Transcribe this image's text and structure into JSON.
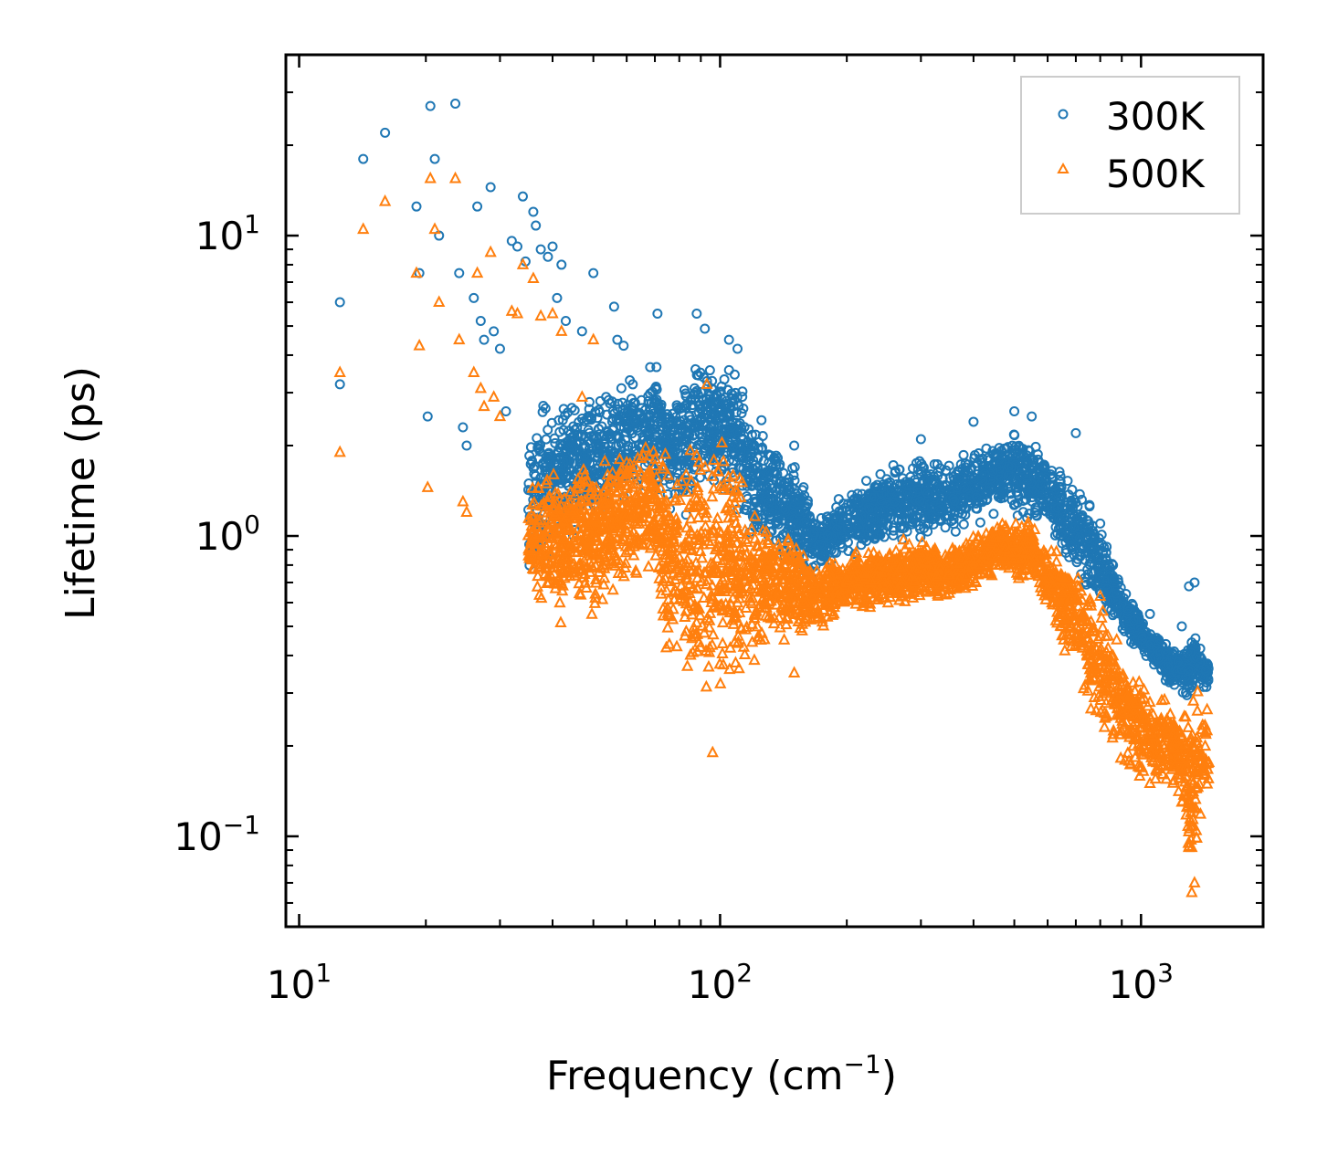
{
  "chart_data": {
    "type": "scatter",
    "xscale": "log",
    "yscale": "log",
    "xlim": [
      9.3,
      1950
    ],
    "ylim": [
      0.05,
      40
    ],
    "xlabel": "Frequency (cm",
    "xlabel_sup": "−1",
    "xlabel_end": ")",
    "ylabel": "Lifetime (ps)",
    "xticks": [
      {
        "value": 10,
        "base": "10",
        "exp": "1"
      },
      {
        "value": 100,
        "base": "10",
        "exp": "2"
      },
      {
        "value": 1000,
        "base": "10",
        "exp": "3"
      }
    ],
    "yticks": [
      {
        "value": 0.1,
        "base": "10",
        "exp": "−1"
      },
      {
        "value": 1,
        "base": "10",
        "exp": "0"
      },
      {
        "value": 10,
        "base": "10",
        "exp": "1"
      }
    ],
    "legend_position": "top-right",
    "series": [
      {
        "name": "300K",
        "marker": "circle",
        "color": "#1f77b4",
        "points": [
          [
            12.5,
            6.0
          ],
          [
            12.5,
            3.2
          ],
          [
            14.2,
            18.0
          ],
          [
            16,
            22.0
          ],
          [
            19,
            12.5
          ],
          [
            19.3,
            7.5
          ],
          [
            20.2,
            2.5
          ],
          [
            20.5,
            27.0
          ],
          [
            21,
            18.0
          ],
          [
            21.5,
            10.0
          ],
          [
            23.5,
            27.5
          ],
          [
            24,
            7.5
          ],
          [
            24.5,
            2.3
          ],
          [
            25,
            2.0
          ],
          [
            26,
            6.2
          ],
          [
            26.5,
            12.5
          ],
          [
            27,
            5.2
          ],
          [
            27.5,
            4.5
          ],
          [
            28.5,
            14.5
          ],
          [
            29,
            4.8
          ],
          [
            30,
            4.2
          ],
          [
            31,
            2.6
          ],
          [
            32,
            9.6
          ],
          [
            33,
            9.2
          ],
          [
            34,
            13.5
          ],
          [
            34.5,
            8.2
          ],
          [
            36,
            12.0
          ],
          [
            36.5,
            10.8
          ],
          [
            37.5,
            9.0
          ],
          [
            39,
            8.5
          ],
          [
            40,
            9.2
          ],
          [
            41,
            6.2
          ],
          [
            42,
            8.0
          ],
          [
            43,
            5.2
          ],
          [
            47,
            4.8
          ],
          [
            50,
            7.5
          ],
          [
            56,
            5.8
          ],
          [
            57,
            4.5
          ],
          [
            59,
            4.3
          ],
          [
            71,
            5.5
          ],
          [
            88,
            5.5
          ],
          [
            92,
            4.9
          ],
          [
            105,
            4.5
          ],
          [
            110,
            4.2
          ],
          [
            150,
            2.0
          ],
          [
            300,
            2.1
          ],
          [
            400,
            2.4
          ],
          [
            500,
            2.6
          ],
          [
            550,
            2.5
          ],
          [
            700,
            2.2
          ],
          [
            800,
            1.1
          ],
          [
            1050,
            0.55
          ],
          [
            1250,
            0.5
          ],
          [
            1300,
            0.68
          ],
          [
            1340,
            0.7
          ]
        ],
        "bands": [
          [
            35,
            0.7,
            2.6
          ],
          [
            40,
            0.8,
            3.0
          ],
          [
            45,
            0.9,
            3.2
          ],
          [
            50,
            1.0,
            3.4
          ],
          [
            55,
            1.1,
            3.6
          ],
          [
            60,
            1.2,
            3.8
          ],
          [
            65,
            1.3,
            3.9
          ],
          [
            70,
            1.4,
            3.9
          ],
          [
            75,
            1.1,
            3.8
          ],
          [
            80,
            1.0,
            3.8
          ],
          [
            85,
            1.1,
            4.2
          ],
          [
            90,
            1.3,
            5.0
          ],
          [
            95,
            1.2,
            4.8
          ],
          [
            100,
            1.1,
            4.2
          ],
          [
            105,
            1.2,
            4.2
          ],
          [
            110,
            1.1,
            3.6
          ],
          [
            115,
            1.0,
            3.2
          ],
          [
            120,
            0.9,
            2.9
          ],
          [
            130,
            0.9,
            2.4
          ],
          [
            140,
            0.8,
            2.1
          ],
          [
            150,
            0.75,
            1.9
          ],
          [
            160,
            0.75,
            1.6
          ],
          [
            170,
            0.7,
            1.2
          ],
          [
            180,
            0.75,
            1.3
          ],
          [
            200,
            0.8,
            1.5
          ],
          [
            230,
            0.85,
            1.7
          ],
          [
            260,
            0.9,
            1.9
          ],
          [
            300,
            0.9,
            2.0
          ],
          [
            330,
            0.95,
            1.8
          ],
          [
            360,
            1.0,
            1.8
          ],
          [
            400,
            1.05,
            2.1
          ],
          [
            450,
            1.1,
            2.3
          ],
          [
            500,
            1.1,
            2.4
          ],
          [
            550,
            1.05,
            2.3
          ],
          [
            600,
            0.95,
            2.0
          ],
          [
            650,
            0.8,
            1.7
          ],
          [
            700,
            0.7,
            1.6
          ],
          [
            750,
            0.6,
            1.4
          ],
          [
            800,
            0.55,
            1.1
          ],
          [
            850,
            0.5,
            0.9
          ],
          [
            900,
            0.45,
            0.75
          ],
          [
            950,
            0.42,
            0.65
          ],
          [
            1000,
            0.4,
            0.55
          ],
          [
            1050,
            0.38,
            0.5
          ],
          [
            1100,
            0.35,
            0.48
          ],
          [
            1150,
            0.32,
            0.45
          ],
          [
            1200,
            0.3,
            0.44
          ],
          [
            1250,
            0.3,
            0.42
          ],
          [
            1300,
            0.25,
            0.5
          ],
          [
            1350,
            0.3,
            0.48
          ],
          [
            1400,
            0.3,
            0.42
          ],
          [
            1450,
            0.3,
            0.4
          ]
        ]
      },
      {
        "name": "500K",
        "marker": "triangle",
        "color": "#ff7f0e",
        "points": [
          [
            12.5,
            3.5
          ],
          [
            12.5,
            1.9
          ],
          [
            14.2,
            10.5
          ],
          [
            16,
            13.0
          ],
          [
            19,
            7.5
          ],
          [
            19.3,
            4.3
          ],
          [
            20.2,
            1.45
          ],
          [
            20.5,
            15.5
          ],
          [
            21,
            10.5
          ],
          [
            21.5,
            6.0
          ],
          [
            23.5,
            15.5
          ],
          [
            24,
            4.5
          ],
          [
            24.5,
            1.3
          ],
          [
            25,
            1.2
          ],
          [
            26,
            3.5
          ],
          [
            26.5,
            7.5
          ],
          [
            27,
            3.1
          ],
          [
            27.5,
            2.7
          ],
          [
            28.5,
            8.8
          ],
          [
            29,
            2.9
          ],
          [
            30,
            2.5
          ],
          [
            32,
            5.6
          ],
          [
            33,
            5.5
          ],
          [
            34,
            8.0
          ],
          [
            36,
            7.2
          ],
          [
            37.5,
            5.4
          ],
          [
            40,
            5.5
          ],
          [
            42,
            4.8
          ],
          [
            47,
            2.9
          ],
          [
            50,
            4.5
          ],
          [
            93,
            3.2
          ],
          [
            96,
            0.19
          ],
          [
            150,
            0.35
          ],
          [
            800,
            0.63
          ],
          [
            1050,
            0.15
          ],
          [
            1250,
            0.13
          ],
          [
            1320,
            0.065
          ],
          [
            1340,
            0.07
          ]
        ],
        "bands": [
          [
            35,
            0.65,
            1.6
          ],
          [
            40,
            0.45,
            1.8
          ],
          [
            45,
            0.5,
            2.0
          ],
          [
            50,
            0.5,
            2.0
          ],
          [
            55,
            0.55,
            2.1
          ],
          [
            60,
            0.65,
            2.2
          ],
          [
            65,
            0.7,
            2.3
          ],
          [
            70,
            0.65,
            2.3
          ],
          [
            75,
            0.35,
            2.2
          ],
          [
            80,
            0.3,
            2.2
          ],
          [
            85,
            0.27,
            2.6
          ],
          [
            90,
            0.22,
            3.0
          ],
          [
            95,
            0.21,
            2.6
          ],
          [
            100,
            0.24,
            2.3
          ],
          [
            105,
            0.3,
            2.2
          ],
          [
            110,
            0.32,
            2.0
          ],
          [
            115,
            0.32,
            1.8
          ],
          [
            120,
            0.33,
            1.5
          ],
          [
            130,
            0.4,
            1.3
          ],
          [
            140,
            0.4,
            1.2
          ],
          [
            150,
            0.45,
            1.1
          ],
          [
            160,
            0.45,
            0.95
          ],
          [
            170,
            0.45,
            0.8
          ],
          [
            180,
            0.5,
            0.85
          ],
          [
            200,
            0.55,
            0.9
          ],
          [
            230,
            0.55,
            0.95
          ],
          [
            260,
            0.55,
            1.0
          ],
          [
            300,
            0.6,
            1.0
          ],
          [
            330,
            0.6,
            0.95
          ],
          [
            360,
            0.6,
            0.95
          ],
          [
            400,
            0.65,
            1.05
          ],
          [
            450,
            0.7,
            1.15
          ],
          [
            500,
            0.7,
            1.2
          ],
          [
            550,
            0.65,
            1.15
          ],
          [
            600,
            0.5,
            1.05
          ],
          [
            650,
            0.4,
            0.9
          ],
          [
            700,
            0.35,
            0.85
          ],
          [
            750,
            0.25,
            0.75
          ],
          [
            800,
            0.2,
            0.65
          ],
          [
            850,
            0.18,
            0.55
          ],
          [
            900,
            0.15,
            0.45
          ],
          [
            950,
            0.14,
            0.4
          ],
          [
            1000,
            0.14,
            0.38
          ],
          [
            1050,
            0.14,
            0.35
          ],
          [
            1100,
            0.13,
            0.32
          ],
          [
            1150,
            0.13,
            0.3
          ],
          [
            1200,
            0.13,
            0.3
          ],
          [
            1250,
            0.13,
            0.28
          ],
          [
            1300,
            0.07,
            0.3
          ],
          [
            1350,
            0.07,
            0.35
          ],
          [
            1400,
            0.12,
            0.3
          ],
          [
            1450,
            0.13,
            0.3
          ]
        ]
      }
    ]
  }
}
